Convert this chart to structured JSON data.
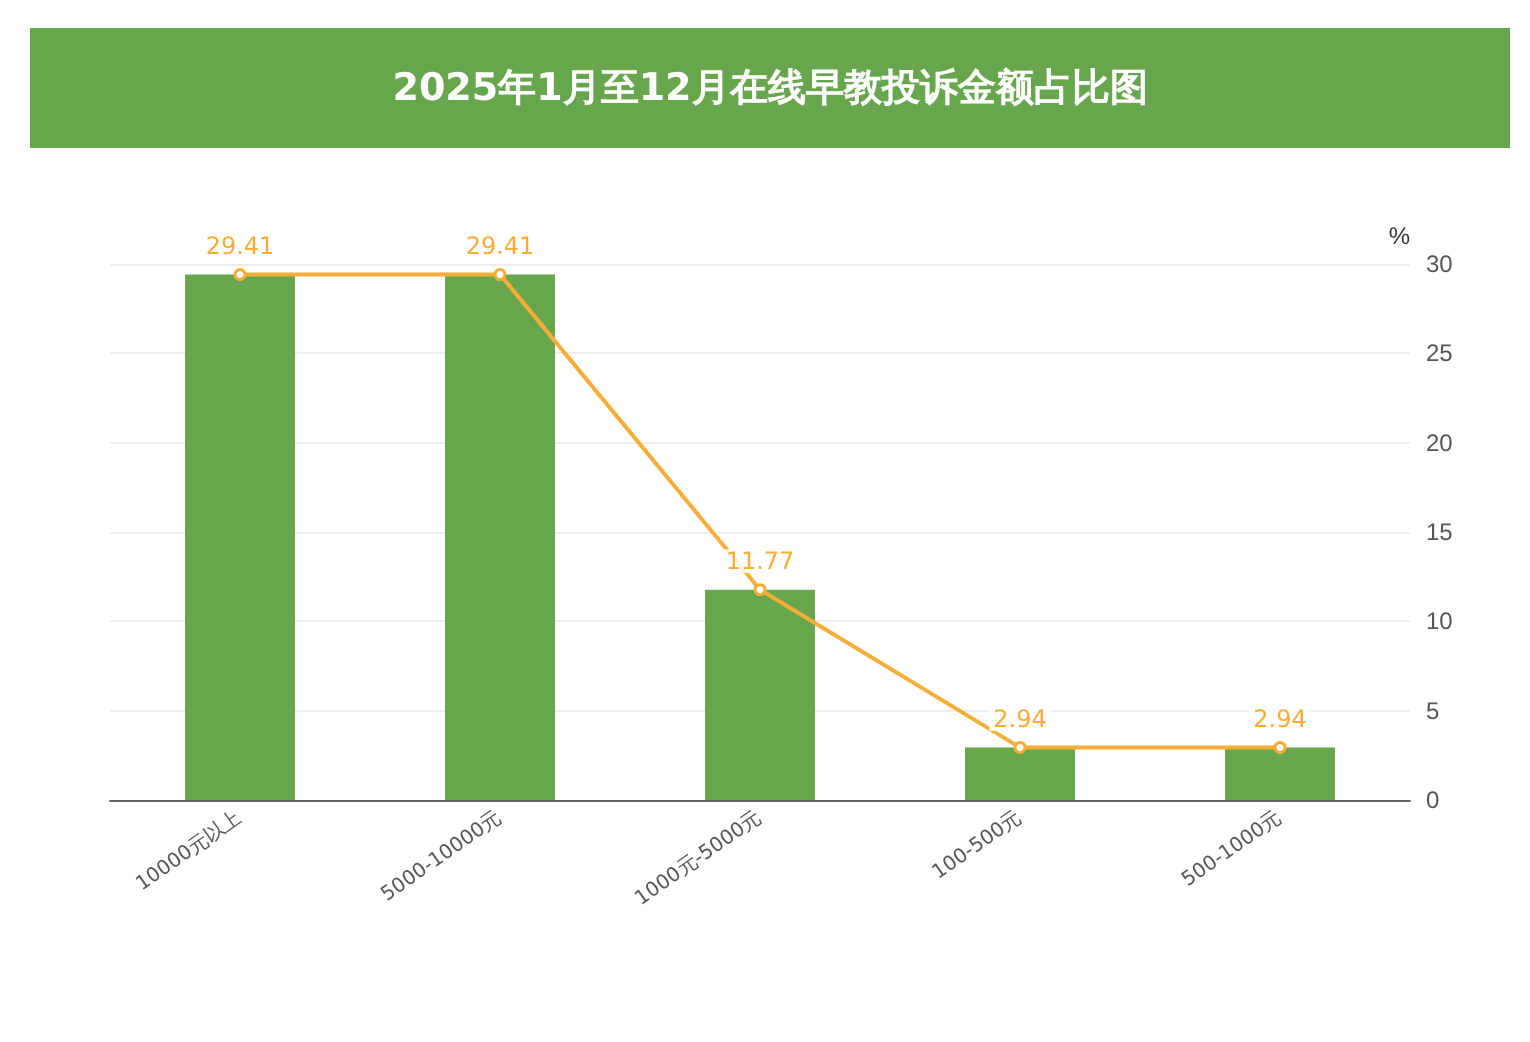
{
  "chart_data": {
    "type": "bar",
    "title": "2025年1月至12月在线早教投诉金额占比图",
    "ylabel": "%",
    "categories": [
      "10000元以上",
      "5000-10000元",
      "1000元-5000元",
      "100-500元",
      "500-1000元"
    ],
    "series": [
      {
        "color": "#67a64d",
        "values": [
          29.41,
          29.41,
          11.77,
          2.94,
          2.94
        ]
      },
      {
        "type": "line",
        "color": "#f7ad37",
        "values": [
          29.41,
          29.41,
          11.77,
          2.94,
          2.94
        ],
        "value_labels": [
          "29.41",
          "29.41",
          "11.77",
          "2.94",
          "2.94"
        ],
        "marker": "circle",
        "line_style": "solid"
      }
    ],
    "ylim": [
      0,
      30
    ],
    "yticks": [
      0,
      5,
      10,
      15,
      20,
      25,
      30
    ],
    "grid": "y"
  }
}
